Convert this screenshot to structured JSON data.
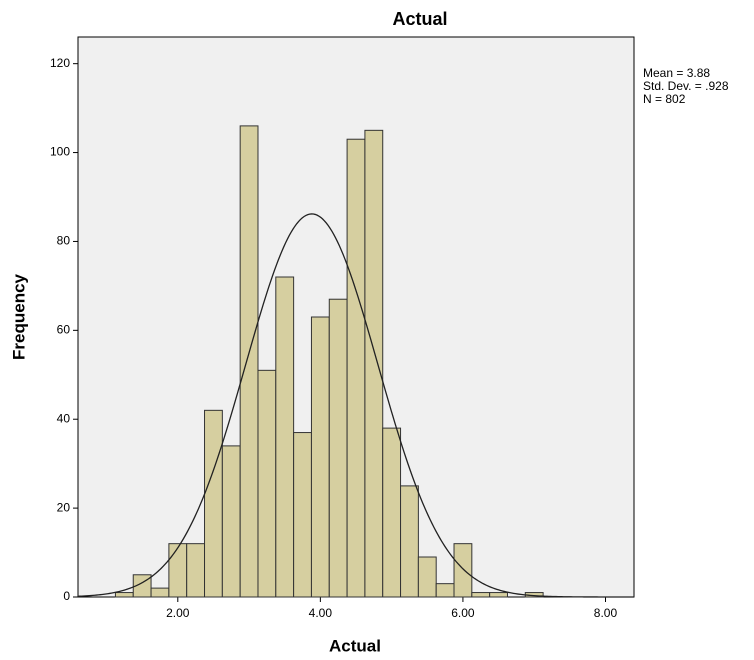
{
  "chart_data": {
    "type": "histogram",
    "title": "Actual",
    "x_label": "Actual",
    "y_label": "Frequency",
    "bins": [
      1.125,
      1.375,
      1.625,
      1.875,
      2.125,
      2.375,
      2.625,
      2.875,
      3.125,
      3.375,
      3.625,
      3.875,
      4.125,
      4.375,
      4.625,
      4.875,
      5.125,
      5.375,
      5.625,
      5.875,
      6.125,
      6.375,
      6.625,
      6.875,
      7.125
    ],
    "values": [
      1,
      5,
      2,
      12,
      12,
      42,
      34,
      106,
      51,
      72,
      37,
      63,
      67,
      103,
      105,
      38,
      25,
      9,
      3,
      12,
      1,
      1,
      0,
      1
    ],
    "color": "#d6cfa0",
    "xlim": [
      0.6,
      8.4
    ],
    "xticks": [
      {
        "value": 2,
        "label": "2.00"
      },
      {
        "value": 4,
        "label": "4.00"
      },
      {
        "value": 6,
        "label": "6.00"
      },
      {
        "value": 8,
        "label": "8.00"
      }
    ],
    "ylim": [
      0,
      126
    ],
    "yticks": [
      0,
      20,
      40,
      60,
      80,
      100,
      120
    ],
    "stats": [
      {
        "value": 3.88,
        "label": "Mean = 3.88"
      },
      {
        "value": 0.928,
        "label": "Std. Dev. = .928"
      },
      {
        "value": 802,
        "label": "N = 802"
      }
    ],
    "normal_curve": true
  }
}
